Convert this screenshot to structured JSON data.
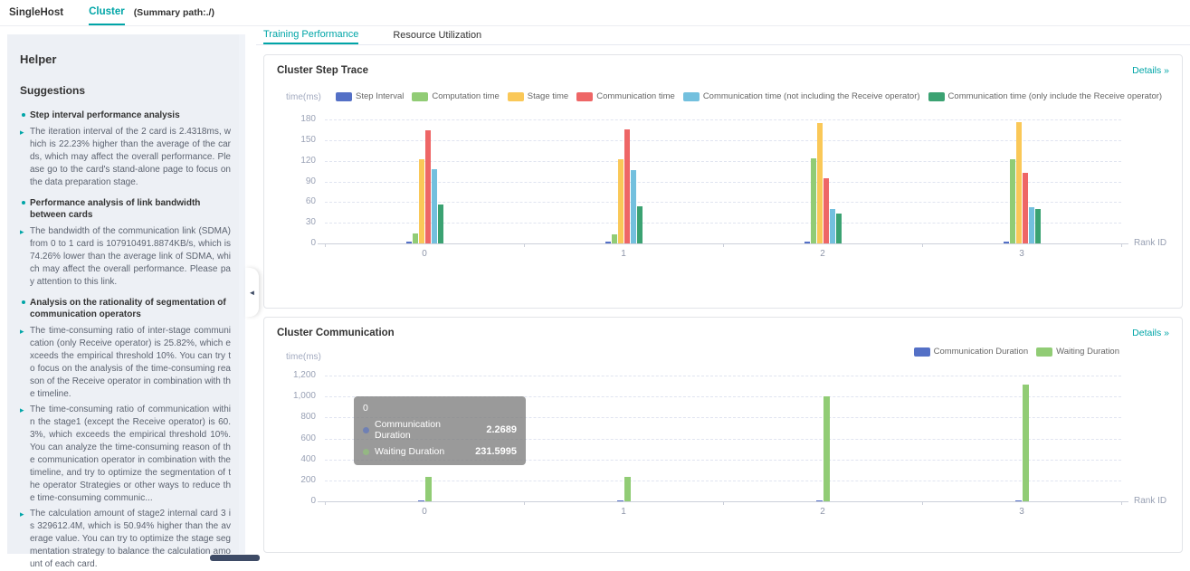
{
  "accent_color": "#00a5a7",
  "header": {
    "app_title": "SingleHost",
    "cluster_tab": "Cluster",
    "summary_path": "(Summary path:./)"
  },
  "main_tabs": [
    {
      "label": "Training Performance",
      "active": true
    },
    {
      "label": "Resource Utilization",
      "active": false
    }
  ],
  "sidebar": {
    "title": "Helper",
    "subtitle": "Suggestions",
    "collapse_icon": "◄",
    "sections": [
      {
        "heading": "Step interval performance analysis",
        "items": [
          "The iteration interval of the 2 card is 2.4318ms, which is 22.23% higher than the average of the cards, which may affect the overall performance. Please go to the card's stand-alone page to focus on the data preparation stage."
        ]
      },
      {
        "heading": "Performance analysis of link bandwidth between cards",
        "items": [
          "The bandwidth of the communication link (SDMA) from 0 to 1 card is 107910491.8874KB/s, which is 74.26% lower than the average link of SDMA, which may affect the overall performance. Please pay attention to this link."
        ]
      },
      {
        "heading": "Analysis on the rationality of segmentation of communication operators",
        "items": [
          "The time-consuming ratio of inter-stage communication (only Receive operator) is 25.82%, which exceeds the empirical threshold 10%. You can try to focus on the analysis of the time-consuming reason of the Receive operator in combination with the timeline.",
          "The time-consuming ratio of communication within the stage1 (except the Receive operator) is 60.3%, which exceeds the empirical threshold 10%. You can analyze the time-consuming reason of the communication operator in combination with the timeline, and try to optimize the segmentation of the operator Strategies or other ways to reduce the time-consuming communic...",
          "The calculation amount of stage2 internal card 3 is 329612.4M, which is 50.94% higher than the average value. You can try to optimize the stage segmentation strategy to balance the calculation amount of each card."
        ]
      }
    ]
  },
  "cards": [
    {
      "title": "Cluster Step Trace",
      "details_label": "Details »"
    },
    {
      "title": "Cluster Communication",
      "details_label": "Details »"
    }
  ],
  "chart_data": [
    {
      "type": "bar",
      "title": "Cluster Step Trace",
      "xlabel": "Rank ID",
      "ylabel": "time(ms)",
      "categories": [
        "0",
        "1",
        "2",
        "3"
      ],
      "ylim": [
        0,
        180
      ],
      "yticks": [
        0,
        30,
        60,
        90,
        120,
        150,
        180
      ],
      "grid": "horizontal-dashed",
      "legend_position": "top",
      "series": [
        {
          "name": "Step Interval",
          "color": "#5470c6",
          "values": [
            2,
            2,
            3,
            2
          ]
        },
        {
          "name": "Computation time",
          "color": "#91cc75",
          "values": [
            15,
            13,
            123,
            122
          ]
        },
        {
          "name": "Stage time",
          "color": "#fac858",
          "values": [
            122,
            122,
            175,
            176
          ]
        },
        {
          "name": "Communication time",
          "color": "#ee6666",
          "values": [
            164,
            165,
            95,
            102
          ]
        },
        {
          "name": "Communication time (not including the Receive operator)",
          "color": "#73c0de",
          "values": [
            108,
            107,
            50,
            53
          ]
        },
        {
          "name": "Communication time (only include the Receive operator)",
          "color": "#3ba272",
          "values": [
            56,
            54,
            43,
            50
          ]
        }
      ]
    },
    {
      "type": "bar",
      "title": "Cluster Communication",
      "xlabel": "Rank ID",
      "ylabel": "time(ms)",
      "categories": [
        "0",
        "1",
        "2",
        "3"
      ],
      "ylim": [
        0,
        1200
      ],
      "yticks": [
        0,
        200,
        400,
        600,
        800,
        1000,
        1200
      ],
      "grid": "horizontal-dashed",
      "legend_position": "top-right",
      "series": [
        {
          "name": "Communication Duration",
          "color": "#5470c6",
          "values": [
            2.2689,
            2.3,
            2.5,
            2.5
          ]
        },
        {
          "name": "Waiting Duration",
          "color": "#91cc75",
          "values": [
            231.5995,
            235,
            1005,
            1110
          ]
        }
      ],
      "tooltip": {
        "title": "0",
        "rows": [
          {
            "name": "Communication Duration",
            "value": "2.2689"
          },
          {
            "name": "Waiting Duration",
            "value": "231.5995"
          }
        ]
      }
    }
  ]
}
